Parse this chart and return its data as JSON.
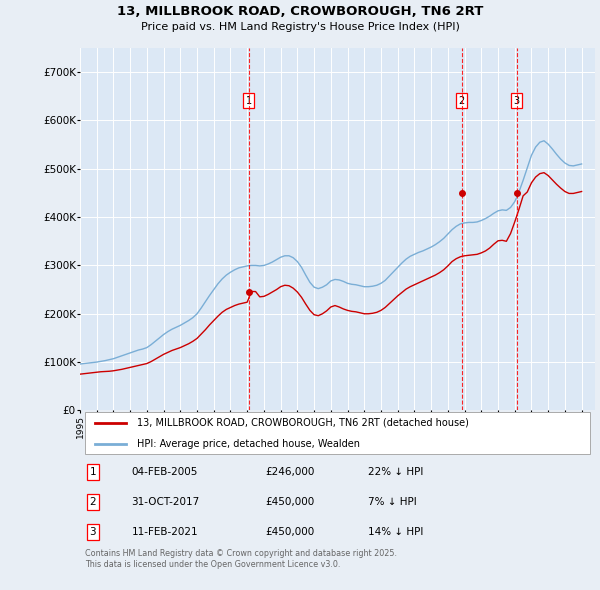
{
  "title": "13, MILLBROOK ROAD, CROWBOROUGH, TN6 2RT",
  "subtitle": "Price paid vs. HM Land Registry's House Price Index (HPI)",
  "ylim": [
    0,
    750000
  ],
  "yticks": [
    0,
    100000,
    200000,
    300000,
    400000,
    500000,
    600000,
    700000
  ],
  "ytick_labels": [
    "£0",
    "£100K",
    "£200K",
    "£300K",
    "£400K",
    "£500K",
    "£600K",
    "£700K"
  ],
  "xlim_start": 1995.0,
  "xlim_end": 2025.8,
  "background_color": "#e8eef5",
  "plot_bg_color": "#dce8f5",
  "grid_color": "#ffffff",
  "red_line_color": "#cc0000",
  "blue_line_color": "#7aaed6",
  "transaction_dates": [
    2005.09,
    2017.83,
    2021.12
  ],
  "transaction_prices": [
    246000,
    450000,
    450000
  ],
  "transaction_labels": [
    "1",
    "2",
    "3"
  ],
  "transaction_info": [
    {
      "num": "1",
      "date": "04-FEB-2005",
      "price": "£246,000",
      "hpi": "22% ↓ HPI"
    },
    {
      "num": "2",
      "date": "31-OCT-2017",
      "price": "£450,000",
      "hpi": "7% ↓ HPI"
    },
    {
      "num": "3",
      "date": "11-FEB-2021",
      "price": "£450,000",
      "hpi": "14% ↓ HPI"
    }
  ],
  "legend_entries": [
    "13, MILLBROOK ROAD, CROWBOROUGH, TN6 2RT (detached house)",
    "HPI: Average price, detached house, Wealden"
  ],
  "footer": "Contains HM Land Registry data © Crown copyright and database right 2025.\nThis data is licensed under the Open Government Licence v3.0.",
  "hpi_years": [
    1995.0,
    1995.25,
    1995.5,
    1995.75,
    1996.0,
    1996.25,
    1996.5,
    1996.75,
    1997.0,
    1997.25,
    1997.5,
    1997.75,
    1998.0,
    1998.25,
    1998.5,
    1998.75,
    1999.0,
    1999.25,
    1999.5,
    1999.75,
    2000.0,
    2000.25,
    2000.5,
    2000.75,
    2001.0,
    2001.25,
    2001.5,
    2001.75,
    2002.0,
    2002.25,
    2002.5,
    2002.75,
    2003.0,
    2003.25,
    2003.5,
    2003.75,
    2004.0,
    2004.25,
    2004.5,
    2004.75,
    2005.0,
    2005.25,
    2005.5,
    2005.75,
    2006.0,
    2006.25,
    2006.5,
    2006.75,
    2007.0,
    2007.25,
    2007.5,
    2007.75,
    2008.0,
    2008.25,
    2008.5,
    2008.75,
    2009.0,
    2009.25,
    2009.5,
    2009.75,
    2010.0,
    2010.25,
    2010.5,
    2010.75,
    2011.0,
    2011.25,
    2011.5,
    2011.75,
    2012.0,
    2012.25,
    2012.5,
    2012.75,
    2013.0,
    2013.25,
    2013.5,
    2013.75,
    2014.0,
    2014.25,
    2014.5,
    2014.75,
    2015.0,
    2015.25,
    2015.5,
    2015.75,
    2016.0,
    2016.25,
    2016.5,
    2016.75,
    2017.0,
    2017.25,
    2017.5,
    2017.75,
    2018.0,
    2018.25,
    2018.5,
    2018.75,
    2019.0,
    2019.25,
    2019.5,
    2019.75,
    2020.0,
    2020.25,
    2020.5,
    2020.75,
    2021.0,
    2021.25,
    2021.5,
    2021.75,
    2022.0,
    2022.25,
    2022.5,
    2022.75,
    2023.0,
    2023.25,
    2023.5,
    2023.75,
    2024.0,
    2024.25,
    2024.5,
    2024.75,
    2025.0
  ],
  "hpi_values": [
    96000,
    97000,
    98000,
    99000,
    100000,
    101500,
    103000,
    105000,
    107000,
    110000,
    113000,
    116000,
    119000,
    122000,
    125000,
    127000,
    130000,
    136000,
    143000,
    150000,
    157000,
    163000,
    168000,
    172000,
    176000,
    181000,
    186000,
    192000,
    200000,
    212000,
    225000,
    238000,
    250000,
    262000,
    272000,
    280000,
    286000,
    291000,
    295000,
    297000,
    299000,
    300000,
    300000,
    299000,
    300000,
    303000,
    307000,
    312000,
    317000,
    320000,
    320000,
    316000,
    308000,
    296000,
    280000,
    265000,
    255000,
    252000,
    255000,
    260000,
    268000,
    271000,
    270000,
    267000,
    263000,
    261000,
    260000,
    258000,
    256000,
    256000,
    257000,
    259000,
    263000,
    269000,
    278000,
    287000,
    296000,
    305000,
    313000,
    319000,
    323000,
    327000,
    330000,
    334000,
    338000,
    343000,
    349000,
    356000,
    365000,
    374000,
    381000,
    386000,
    388000,
    389000,
    389000,
    390000,
    393000,
    397000,
    402000,
    408000,
    413000,
    415000,
    414000,
    420000,
    432000,
    452000,
    476000,
    502000,
    528000,
    545000,
    555000,
    558000,
    551000,
    541000,
    530000,
    520000,
    512000,
    507000,
    506000,
    508000,
    510000
  ],
  "red_years": [
    1995.0,
    1995.25,
    1995.5,
    1995.75,
    1996.0,
    1996.25,
    1996.5,
    1996.75,
    1997.0,
    1997.25,
    1997.5,
    1997.75,
    1998.0,
    1998.25,
    1998.5,
    1998.75,
    1999.0,
    1999.25,
    1999.5,
    1999.75,
    2000.0,
    2000.25,
    2000.5,
    2000.75,
    2001.0,
    2001.25,
    2001.5,
    2001.75,
    2002.0,
    2002.25,
    2002.5,
    2002.75,
    2003.0,
    2003.25,
    2003.5,
    2003.75,
    2004.0,
    2004.25,
    2004.5,
    2004.75,
    2005.0,
    2005.25,
    2005.5,
    2005.75,
    2006.0,
    2006.25,
    2006.5,
    2006.75,
    2007.0,
    2007.25,
    2007.5,
    2007.75,
    2008.0,
    2008.25,
    2008.5,
    2008.75,
    2009.0,
    2009.25,
    2009.5,
    2009.75,
    2010.0,
    2010.25,
    2010.5,
    2010.75,
    2011.0,
    2011.25,
    2011.5,
    2011.75,
    2012.0,
    2012.25,
    2012.5,
    2012.75,
    2013.0,
    2013.25,
    2013.5,
    2013.75,
    2014.0,
    2014.25,
    2014.5,
    2014.75,
    2015.0,
    2015.25,
    2015.5,
    2015.75,
    2016.0,
    2016.25,
    2016.5,
    2016.75,
    2017.0,
    2017.25,
    2017.5,
    2017.75,
    2018.0,
    2018.25,
    2018.5,
    2018.75,
    2019.0,
    2019.25,
    2019.5,
    2019.75,
    2020.0,
    2020.25,
    2020.5,
    2020.75,
    2021.0,
    2021.25,
    2021.5,
    2021.75,
    2022.0,
    2022.25,
    2022.5,
    2022.75,
    2023.0,
    2023.25,
    2023.5,
    2023.75,
    2024.0,
    2024.25,
    2024.5,
    2024.75,
    2025.0
  ],
  "red_values": [
    75000,
    76000,
    77000,
    78000,
    79000,
    80000,
    80500,
    81000,
    82000,
    83500,
    85000,
    87000,
    89000,
    91000,
    93000,
    95000,
    97000,
    101000,
    106000,
    111000,
    116000,
    120000,
    124000,
    127000,
    130000,
    134000,
    138000,
    143000,
    149000,
    158000,
    167000,
    177000,
    186000,
    195000,
    203000,
    209000,
    213000,
    217000,
    220000,
    222000,
    224000,
    246000,
    246000,
    235000,
    236000,
    240000,
    245000,
    250000,
    256000,
    259000,
    258000,
    253000,
    245000,
    234000,
    220000,
    207000,
    198000,
    196000,
    200000,
    206000,
    214000,
    217000,
    214000,
    210000,
    207000,
    205000,
    204000,
    202000,
    200000,
    200000,
    201000,
    203000,
    207000,
    213000,
    221000,
    229000,
    237000,
    244000,
    251000,
    256000,
    260000,
    264000,
    268000,
    272000,
    276000,
    280000,
    285000,
    291000,
    299000,
    308000,
    314000,
    318000,
    320000,
    321000,
    322000,
    323000,
    326000,
    330000,
    336000,
    344000,
    351000,
    352000,
    350000,
    366000,
    390000,
    416000,
    444000,
    452000,
    471000,
    483000,
    490000,
    492000,
    486000,
    477000,
    468000,
    460000,
    453000,
    449000,
    449000,
    451000,
    453000
  ]
}
